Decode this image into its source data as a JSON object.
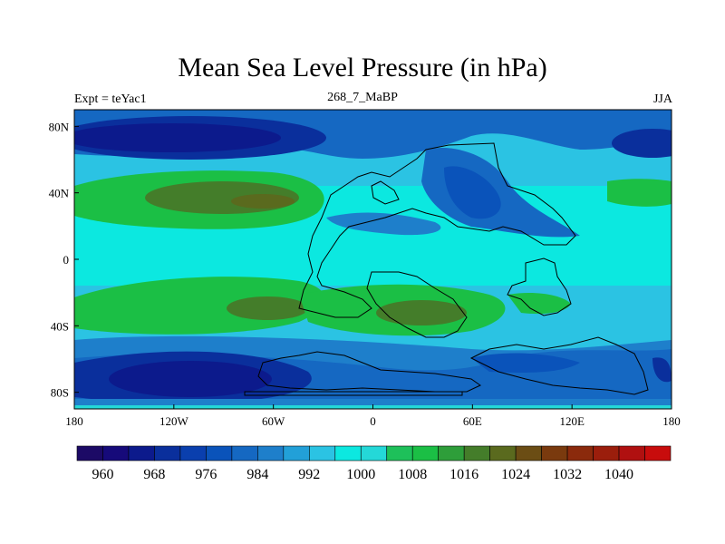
{
  "chart_data": {
    "type": "heatmap",
    "title": "Mean Sea Level Pressure (in hPa)",
    "left_label": "Expt = teYac1",
    "center_label": "268_7_MaBP",
    "right_label": "JJA",
    "xlim": [
      -180,
      180
    ],
    "ylim": [
      -90,
      90
    ],
    "x_ticks": [
      {
        "value": -180,
        "label": "180"
      },
      {
        "value": -120,
        "label": "120W"
      },
      {
        "value": -60,
        "label": "60W"
      },
      {
        "value": 0,
        "label": "0"
      },
      {
        "value": 60,
        "label": "60E"
      },
      {
        "value": 120,
        "label": "120E"
      },
      {
        "value": 180,
        "label": "180"
      }
    ],
    "y_ticks": [
      {
        "value": 80,
        "label": "80N"
      },
      {
        "value": 40,
        "label": "40N"
      },
      {
        "value": 0,
        "label": "0"
      },
      {
        "value": -40,
        "label": "40S"
      },
      {
        "value": -80,
        "label": "80S"
      }
    ],
    "levels": [
      956,
      960,
      964,
      968,
      972,
      976,
      980,
      984,
      988,
      992,
      996,
      1000,
      1004,
      1008,
      1012,
      1016,
      1020,
      1024,
      1028,
      1032,
      1036,
      1040,
      1044
    ],
    "colors": [
      "#1c0a66",
      "#160a7a",
      "#0c1a8c",
      "#0a2f9c",
      "#0a3fae",
      "#0a53ba",
      "#1568c2",
      "#1e7fcb",
      "#22a0d8",
      "#2bc3e3",
      "#0ce8e0",
      "#24d8d8",
      "#1ec05a",
      "#1bbf45",
      "#2e9e3a",
      "#447d2a",
      "#5a6a1e",
      "#6b4d14",
      "#7a3a0e",
      "#8b2a0c",
      "#9b1e0c",
      "#b01010",
      "#c80c0c"
    ],
    "colorbar_labels": [
      "960",
      "968",
      "976",
      "984",
      "992",
      "1000",
      "1008",
      "1016",
      "1024",
      "1032",
      "1040"
    ],
    "field_features": [
      {
        "lon": -160,
        "lat": 80,
        "value": 968,
        "kind": "low"
      },
      {
        "lon": -60,
        "lat": 80,
        "value": 978,
        "kind": "low"
      },
      {
        "lon": 170,
        "lat": 75,
        "value": 968,
        "kind": "low"
      },
      {
        "lon": -125,
        "lat": 38,
        "value": 1012,
        "kind": "high"
      },
      {
        "lon": -95,
        "lat": 35,
        "value": 1016,
        "kind": "high"
      },
      {
        "lon": -85,
        "lat": -30,
        "value": 1012,
        "kind": "high"
      },
      {
        "lon": 30,
        "lat": -33,
        "value": 1014,
        "kind": "high"
      },
      {
        "lon": -100,
        "lat": -70,
        "value": 962,
        "kind": "low"
      },
      {
        "lon": 20,
        "lat": 45,
        "value": 990,
        "kind": "low"
      }
    ]
  }
}
